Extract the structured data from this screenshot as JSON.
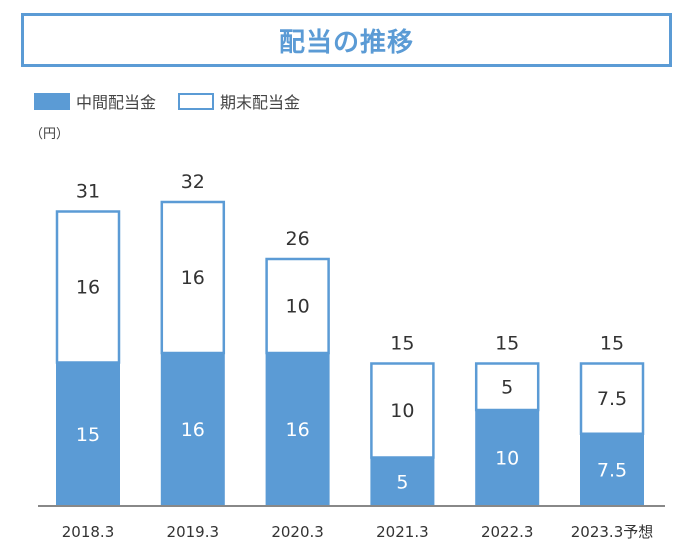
{
  "title": "配当の推移",
  "unit": "（円）",
  "colors": {
    "interim": "#5b9bd5",
    "year_end": "#ffffff",
    "border": "#5b9bd5",
    "axis": "#888888"
  },
  "chart_data": {
    "type": "bar",
    "stacked": true,
    "categories": [
      "2018.3",
      "2019.3",
      "2020.3",
      "2021.3",
      "2022.3",
      "2023.3予想"
    ],
    "series": [
      {
        "name": "中間配当金",
        "values": [
          15,
          16,
          16,
          5,
          10,
          7.5
        ]
      },
      {
        "name": "期末配当金",
        "values": [
          16,
          16,
          10,
          10,
          5,
          7.5
        ]
      }
    ],
    "totals": [
      31,
      32,
      26,
      15,
      15,
      15
    ],
    "ylim": [
      0,
      32
    ],
    "legend": "top-left",
    "grid": false
  }
}
